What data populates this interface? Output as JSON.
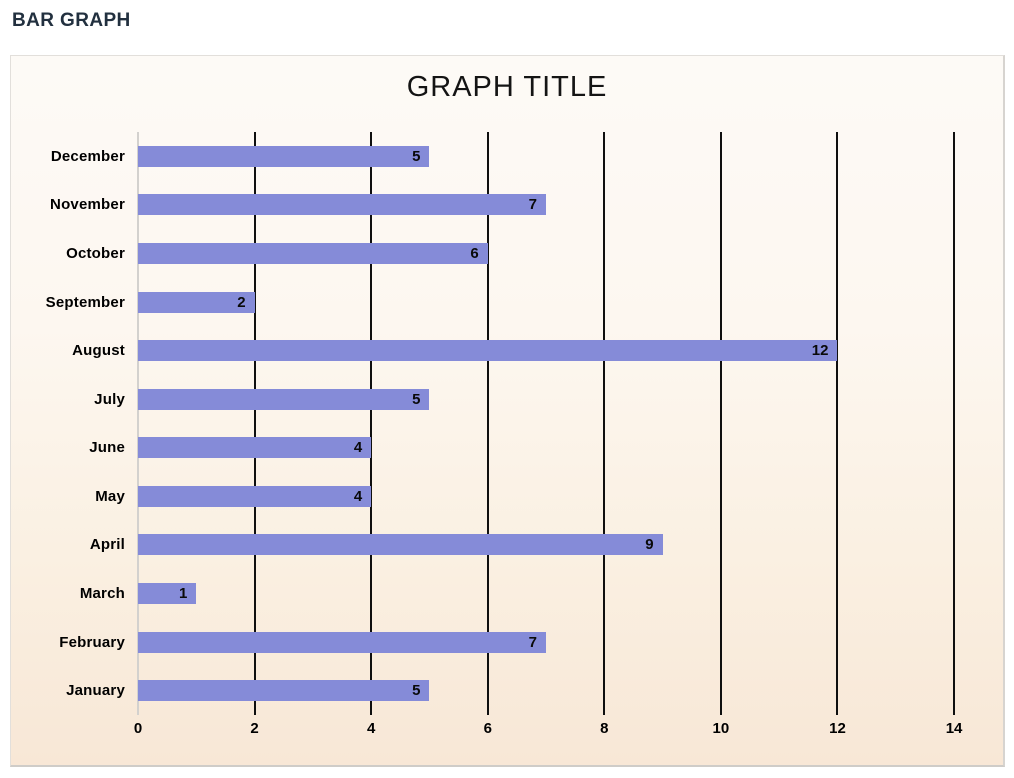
{
  "page": {
    "heading": "BAR GRAPH"
  },
  "chart": {
    "title": "GRAPH TITLE",
    "colors": {
      "bar": "#858bd8",
      "gridline": "#0f0f0f",
      "axis_line": "#d3d1ce",
      "background_top": "#fdfaf6",
      "background_bottom": "#f8e7d6",
      "heading_text": "#22303f",
      "label_text": "#000000"
    }
  },
  "chart_data": {
    "type": "bar",
    "orientation": "horizontal",
    "title": "GRAPH TITLE",
    "categories": [
      "December",
      "November",
      "October",
      "September",
      "August",
      "July",
      "June",
      "May",
      "April",
      "March",
      "February",
      "January"
    ],
    "values": [
      5,
      7,
      6,
      2,
      12,
      5,
      4,
      4,
      9,
      1,
      7,
      5
    ],
    "xlabel": "",
    "ylabel": "",
    "xlim": [
      0,
      14
    ],
    "xticks": [
      0,
      2,
      4,
      6,
      8,
      10,
      12,
      14
    ],
    "grid": true,
    "legend": false,
    "value_labels": "inside-end",
    "bar_color": "#858bd8"
  }
}
